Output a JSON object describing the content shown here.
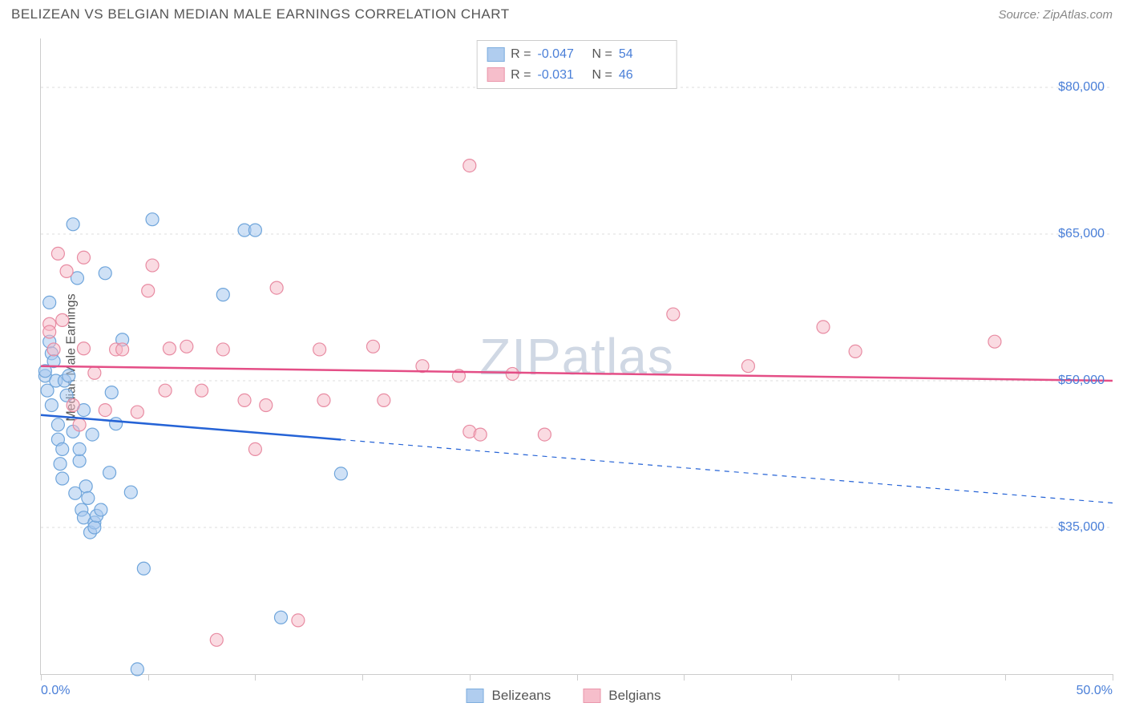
{
  "title": "BELIZEAN VS BELGIAN MEDIAN MALE EARNINGS CORRELATION CHART",
  "source": "Source: ZipAtlas.com",
  "ylabel": "Median Male Earnings",
  "watermark": "ZIPatlas",
  "chart": {
    "type": "scatter",
    "xlim": [
      0,
      50
    ],
    "ylim": [
      20000,
      85000
    ],
    "x_tick_positions": [
      0,
      5,
      10,
      15,
      20,
      25,
      30,
      35,
      40,
      45,
      50
    ],
    "x_tick_labels_shown": {
      "0": "0.0%",
      "50": "50.0%"
    },
    "y_gridlines": [
      35000,
      50000,
      65000,
      80000
    ],
    "y_tick_labels": {
      "35000": "$35,000",
      "50000": "$50,000",
      "65000": "$65,000",
      "80000": "$80,000"
    },
    "background_color": "#ffffff",
    "grid_color": "#dddddd",
    "axis_color": "#cccccc",
    "marker_radius": 8,
    "marker_stroke_width": 1.2,
    "series": [
      {
        "id": "belizeans",
        "label": "Belizeans",
        "fill": "#a8c8ee",
        "stroke": "#6fa5db",
        "fill_opacity": 0.55,
        "r_value": "-0.047",
        "n_value": "54",
        "trend": {
          "x1": 0,
          "y1": 46500,
          "x2": 50,
          "y2": 37500,
          "solid_until_x": 14,
          "color": "#2563d6",
          "width": 2.5
        },
        "points": [
          [
            0.2,
            50500
          ],
          [
            0.2,
            51000
          ],
          [
            0.3,
            49000
          ],
          [
            0.4,
            54000
          ],
          [
            0.4,
            58000
          ],
          [
            0.5,
            47500
          ],
          [
            0.5,
            52800
          ],
          [
            0.6,
            52000
          ],
          [
            0.7,
            50000
          ],
          [
            0.8,
            44000
          ],
          [
            0.8,
            45500
          ],
          [
            0.9,
            41500
          ],
          [
            1.0,
            40000
          ],
          [
            1.0,
            43000
          ],
          [
            1.1,
            50000
          ],
          [
            1.2,
            48500
          ],
          [
            1.3,
            50500
          ],
          [
            1.5,
            44800
          ],
          [
            1.5,
            66000
          ],
          [
            1.6,
            38500
          ],
          [
            1.7,
            60500
          ],
          [
            1.8,
            41800
          ],
          [
            1.8,
            43000
          ],
          [
            1.9,
            36800
          ],
          [
            2.0,
            36000
          ],
          [
            2.0,
            47000
          ],
          [
            2.1,
            39200
          ],
          [
            2.2,
            38000
          ],
          [
            2.3,
            34500
          ],
          [
            2.4,
            44500
          ],
          [
            2.5,
            35500
          ],
          [
            2.5,
            35000
          ],
          [
            2.6,
            36200
          ],
          [
            2.8,
            36800
          ],
          [
            3.0,
            61000
          ],
          [
            3.2,
            40600
          ],
          [
            3.3,
            48800
          ],
          [
            3.5,
            45600
          ],
          [
            3.8,
            54200
          ],
          [
            4.2,
            38600
          ],
          [
            4.5,
            20500
          ],
          [
            4.8,
            30800
          ],
          [
            5.2,
            66500
          ],
          [
            8.5,
            58800
          ],
          [
            9.5,
            65400
          ],
          [
            10.0,
            65400
          ],
          [
            11.2,
            25800
          ],
          [
            14.0,
            40500
          ]
        ]
      },
      {
        "id": "belgians",
        "label": "Belgians",
        "fill": "#f6b8c6",
        "stroke": "#e88ba2",
        "fill_opacity": 0.5,
        "r_value": "-0.031",
        "n_value": "46",
        "trend": {
          "x1": 0,
          "y1": 51500,
          "x2": 50,
          "y2": 50000,
          "solid_until_x": 50,
          "color": "#e44e86",
          "width": 2.5
        },
        "points": [
          [
            0.4,
            55800
          ],
          [
            0.4,
            55000
          ],
          [
            0.6,
            53200
          ],
          [
            0.8,
            63000
          ],
          [
            1.0,
            56200
          ],
          [
            1.2,
            61200
          ],
          [
            1.5,
            47500
          ],
          [
            1.8,
            45500
          ],
          [
            2.0,
            53300
          ],
          [
            2.0,
            62600
          ],
          [
            2.5,
            50800
          ],
          [
            3.0,
            47000
          ],
          [
            3.5,
            53200
          ],
          [
            3.8,
            53200
          ],
          [
            4.5,
            46800
          ],
          [
            5.0,
            59200
          ],
          [
            5.2,
            61800
          ],
          [
            5.8,
            49000
          ],
          [
            6.0,
            53300
          ],
          [
            6.8,
            53500
          ],
          [
            7.5,
            49000
          ],
          [
            8.2,
            23500
          ],
          [
            8.5,
            53200
          ],
          [
            9.5,
            48000
          ],
          [
            10.0,
            43000
          ],
          [
            10.5,
            47500
          ],
          [
            11.0,
            59500
          ],
          [
            12.0,
            25500
          ],
          [
            13.0,
            53200
          ],
          [
            13.2,
            48000
          ],
          [
            15.5,
            53500
          ],
          [
            16.0,
            48000
          ],
          [
            17.8,
            51500
          ],
          [
            19.5,
            50500
          ],
          [
            20.0,
            72000
          ],
          [
            20.0,
            44800
          ],
          [
            20.5,
            44500
          ],
          [
            22.0,
            50700
          ],
          [
            23.5,
            44500
          ],
          [
            29.5,
            56800
          ],
          [
            33.0,
            51500
          ],
          [
            36.5,
            55500
          ],
          [
            38.0,
            53000
          ],
          [
            44.5,
            54000
          ]
        ]
      }
    ]
  },
  "colors": {
    "title_text": "#555555",
    "source_text": "#888888",
    "label_text": "#555555",
    "value_text": "#4a7fd8",
    "watermark": "#d0d8e4"
  }
}
